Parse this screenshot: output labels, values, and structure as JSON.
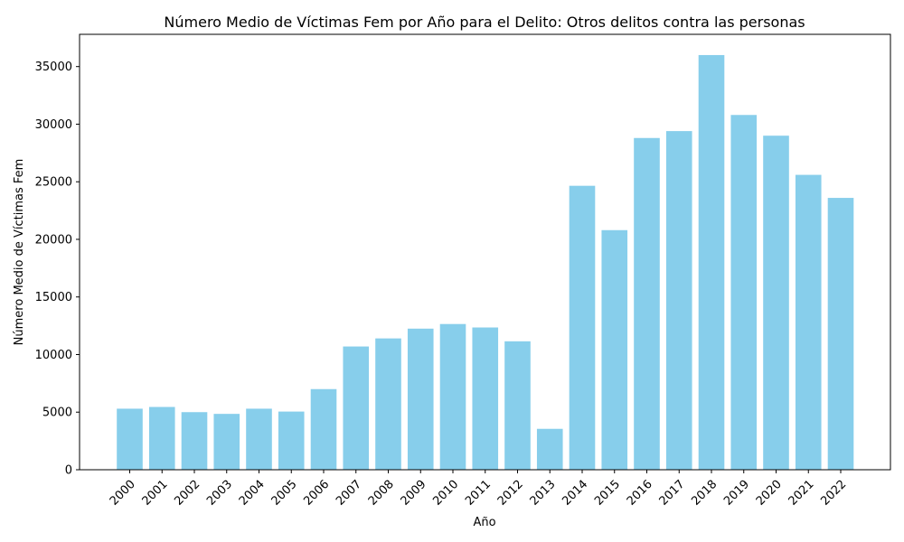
{
  "chart_data": {
    "type": "bar",
    "title": "Número Medio de Víctimas Fem por Año para el Delito: Otros delitos contra las personas",
    "xlabel": "Año",
    "ylabel": "Número Medio de Víctimas Fem",
    "categories": [
      "2000",
      "2001",
      "2002",
      "2003",
      "2004",
      "2005",
      "2006",
      "2007",
      "2008",
      "2009",
      "2010",
      "2011",
      "2012",
      "2013",
      "2014",
      "2015",
      "2016",
      "2017",
      "2018",
      "2019",
      "2020",
      "2021",
      "2022"
    ],
    "values": [
      5300,
      5450,
      5000,
      4850,
      5300,
      5050,
      7000,
      10700,
      11400,
      12250,
      12650,
      12350,
      11150,
      3550,
      24650,
      20800,
      28800,
      29400,
      36000,
      30800,
      29000,
      25600,
      23600
    ],
    "yticks": [
      0,
      5000,
      10000,
      15000,
      20000,
      25000,
      30000,
      35000
    ],
    "ylim": [
      0,
      37800
    ],
    "grid": false,
    "bar_color": "#87ceeb",
    "x_tick_rotation": -45
  }
}
